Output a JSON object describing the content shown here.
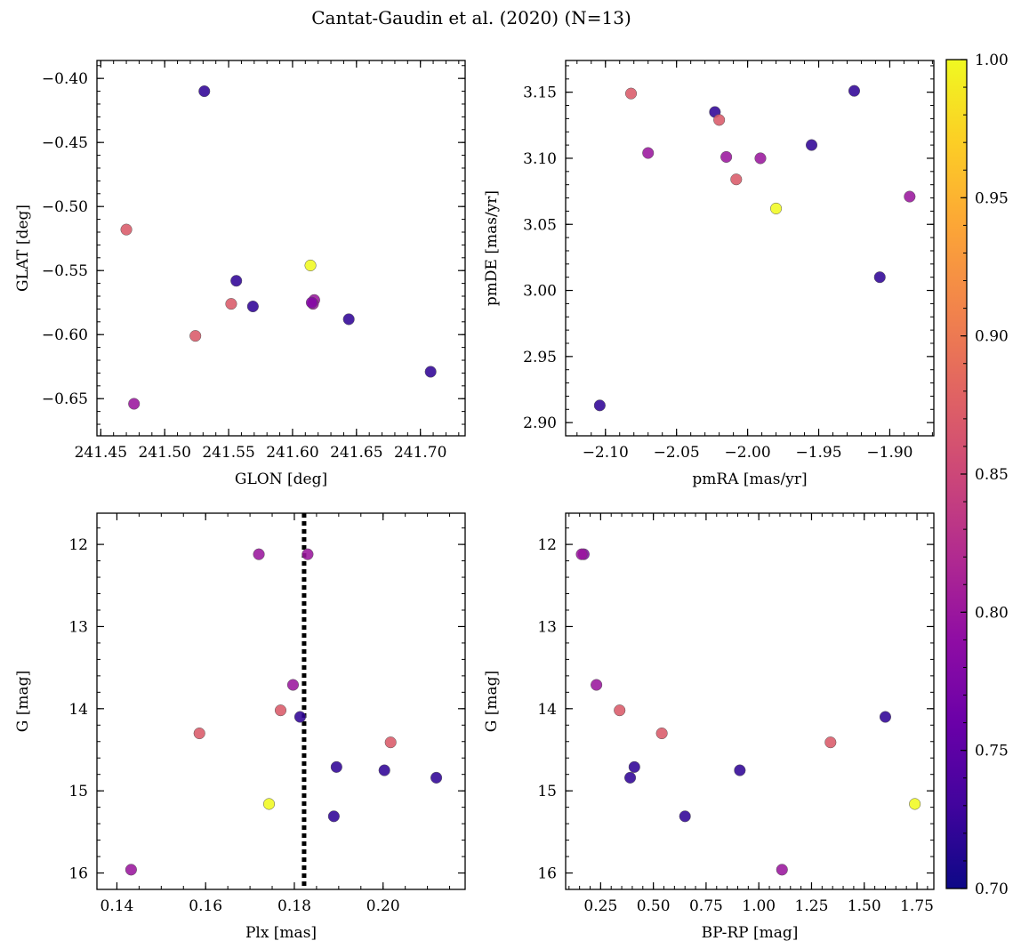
{
  "figure_title": "Cantat-Gaudin et al. (2020) (N=13)",
  "chart_data": [
    {
      "type": "scatter",
      "id": "glon-glat",
      "xlabel": "GLON [deg]",
      "ylabel": "GLAT [deg]",
      "xlim": [
        241.447,
        241.735
      ],
      "ylim": [
        -0.679,
        -0.386
      ],
      "y_inverted": false,
      "xticks": [
        241.45,
        241.5,
        241.55,
        241.6,
        241.65,
        241.7
      ],
      "xtick_labels": [
        "241.45",
        "241.50",
        "241.55",
        "241.60",
        "241.65",
        "241.70"
      ],
      "yticks": [
        -0.4,
        -0.45,
        -0.5,
        -0.55,
        -0.6,
        -0.65
      ],
      "ytick_labels": [
        "−0.40",
        "−0.45",
        "−0.50",
        "−0.55",
        "−0.60",
        "−0.65"
      ],
      "x_minor_step": 0.01,
      "y_minor_step": 0.01,
      "x": [
        241.531,
        241.47,
        241.614,
        241.556,
        241.552,
        241.617,
        241.616,
        241.569,
        241.644,
        241.524,
        241.708,
        241.476,
        241.615
      ],
      "y": [
        -0.41,
        -0.518,
        -0.546,
        -0.558,
        -0.576,
        -0.573,
        -0.576,
        -0.578,
        -0.588,
        -0.601,
        -0.629,
        -0.654,
        -0.575
      ],
      "c": [
        0.72,
        0.87,
        1.0,
        0.72,
        0.87,
        0.8,
        0.8,
        0.72,
        0.72,
        0.87,
        0.72,
        0.8,
        0.78
      ]
    },
    {
      "type": "scatter",
      "id": "pmra-pmde",
      "xlabel": "pmRA [mas/yr]",
      "ylabel": "pmDE [mas/yr]",
      "xlim": [
        -2.128,
        -1.869
      ],
      "ylim": [
        2.89,
        3.174
      ],
      "y_inverted": false,
      "xticks": [
        -2.1,
        -2.05,
        -2.0,
        -1.95,
        -1.9
      ],
      "xtick_labels": [
        "−2.10",
        "−2.05",
        "−2.00",
        "−1.95",
        "−1.90"
      ],
      "yticks": [
        2.9,
        2.95,
        3.0,
        3.05,
        3.1,
        3.15
      ],
      "ytick_labels": [
        "2.90",
        "2.95",
        "3.00",
        "3.05",
        "3.10",
        "3.15"
      ],
      "x_minor_step": 0.01,
      "y_minor_step": 0.01,
      "x": [
        -2.082,
        -2.023,
        -1.925,
        -2.02,
        -2.07,
        -2.015,
        -1.991,
        -1.955,
        -2.008,
        -1.98,
        -1.886,
        -1.907,
        -2.104
      ],
      "y": [
        3.149,
        3.135,
        3.151,
        3.129,
        3.104,
        3.101,
        3.1,
        3.11,
        3.084,
        3.062,
        3.071,
        3.01,
        2.913
      ],
      "c": [
        0.87,
        0.72,
        0.72,
        0.87,
        0.8,
        0.8,
        0.8,
        0.72,
        0.87,
        1.0,
        0.8,
        0.72,
        0.72
      ]
    },
    {
      "type": "scatter",
      "id": "plx-g",
      "xlabel": "Plx [mas]",
      "ylabel": "G [mag]",
      "xlim": [
        0.1355,
        0.2185
      ],
      "ylim": [
        11.62,
        16.2
      ],
      "y_inverted": true,
      "xticks": [
        0.14,
        0.16,
        0.18,
        0.2
      ],
      "xtick_labels": [
        "0.14",
        "0.16",
        "0.18",
        "0.20"
      ],
      "yticks": [
        12,
        13,
        14,
        15,
        16
      ],
      "ytick_labels": [
        "12",
        "13",
        "14",
        "15",
        "16"
      ],
      "x_minor_step": 0.005,
      "y_minor_step": 0.2,
      "vline": 0.1822,
      "x": [
        0.172,
        0.183,
        0.1797,
        0.1769,
        0.1813,
        0.1586,
        0.2017,
        0.1895,
        0.2003,
        0.212,
        0.1743,
        0.1889,
        0.1432
      ],
      "y": [
        12.12,
        12.12,
        13.71,
        14.02,
        14.1,
        14.3,
        14.41,
        14.71,
        14.75,
        14.84,
        15.16,
        15.31,
        15.96
      ],
      "c": [
        0.8,
        0.8,
        0.8,
        0.87,
        0.72,
        0.87,
        0.87,
        0.72,
        0.72,
        0.72,
        1.0,
        0.72,
        0.8
      ]
    },
    {
      "type": "scatter",
      "id": "bprp-g",
      "xlabel": "BP-RP [mag]",
      "ylabel": "G [mag]",
      "xlim": [
        0.084,
        1.83
      ],
      "ylim": [
        11.62,
        16.2
      ],
      "y_inverted": true,
      "xticks": [
        0.25,
        0.5,
        0.75,
        1.0,
        1.25,
        1.5,
        1.75
      ],
      "xtick_labels": [
        "0.25",
        "0.50",
        "0.75",
        "1.00",
        "1.25",
        "1.50",
        "1.75"
      ],
      "yticks": [
        12,
        13,
        14,
        15,
        16
      ],
      "ytick_labels": [
        "12",
        "13",
        "14",
        "15",
        "16"
      ],
      "x_minor_step": 0.05,
      "y_minor_step": 0.2,
      "x": [
        0.17,
        0.16,
        0.23,
        0.34,
        0.54,
        0.41,
        0.39,
        0.91,
        1.34,
        1.6,
        1.74,
        0.65,
        1.11
      ],
      "y": [
        12.12,
        12.12,
        13.71,
        14.02,
        14.3,
        14.71,
        14.84,
        14.75,
        14.41,
        14.1,
        15.16,
        15.31,
        15.96
      ],
      "c": [
        0.78,
        0.8,
        0.8,
        0.87,
        0.87,
        0.72,
        0.72,
        0.72,
        0.87,
        0.72,
        1.0,
        0.72,
        0.8
      ]
    }
  ],
  "colorbar": {
    "cmap": "plasma",
    "vmin": 0.7,
    "vmax": 1.0,
    "ticks": [
      0.7,
      0.75,
      0.8,
      0.85,
      0.9,
      0.95,
      1.0
    ],
    "tick_labels": [
      "0.70",
      "0.75",
      "0.80",
      "0.85",
      "0.90",
      "0.95",
      "1.00"
    ]
  },
  "colors": {
    "vline": "#000000",
    "marker_edge": "#555555",
    "axes": "#000000"
  }
}
